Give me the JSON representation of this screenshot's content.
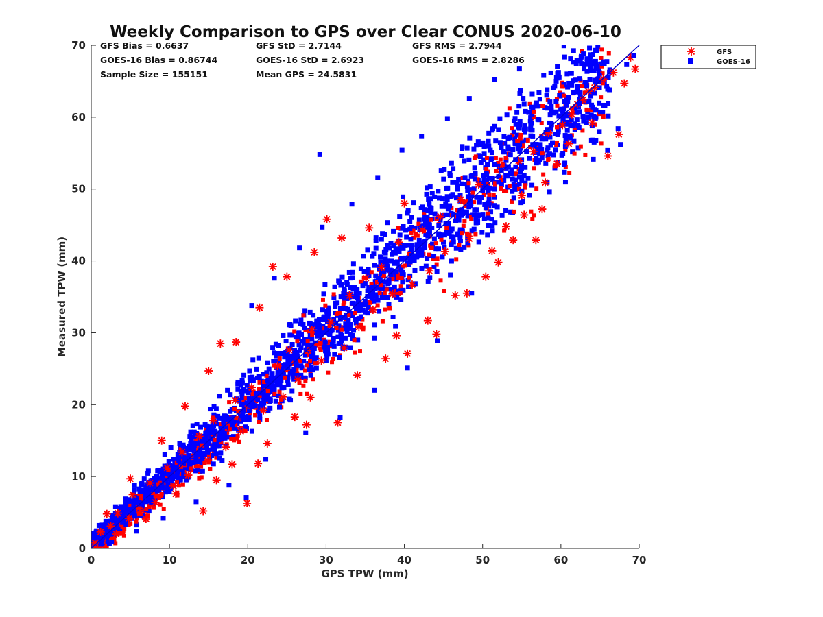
{
  "chart_data": {
    "type": "scatter",
    "title": "Weekly Comparison to GPS over Clear CONUS 2020-06-10",
    "xlabel": "GPS TPW (mm)",
    "ylabel": "Measured TPW (mm)",
    "xlim": [
      0,
      70
    ],
    "ylim": [
      0,
      70
    ],
    "xticks": [
      "0",
      "10",
      "20",
      "30",
      "40",
      "50",
      "60",
      "70"
    ],
    "yticks": [
      "0",
      "10",
      "20",
      "30",
      "40",
      "50",
      "60",
      "70"
    ],
    "grid": false,
    "legend_placement": "outside-top-right",
    "reference_line": [
      [
        0,
        0
      ],
      [
        70,
        70
      ]
    ],
    "stats": {
      "gfs_bias": "GFS Bias = 0.6637",
      "gfs_std": "GFS StD = 2.7144",
      "gfs_rms": "GFS RMS = 2.7944",
      "goes_bias": "GOES-16 Bias = 0.86744",
      "goes_std": "GOES-16 StD = 2.6923",
      "goes_rms": "GOES-16 RMS = 2.8286",
      "sample_size": "Sample Size = 155151",
      "mean_gps": "Mean GPS = 24.5831"
    },
    "series": [
      {
        "name": "GFS",
        "marker": "asterisk",
        "color": "#ff0000",
        "points": [
          [
            0.5,
            0.8
          ],
          [
            1.2,
            2.3
          ],
          [
            2.5,
            3.1
          ],
          [
            3.4,
            4.9
          ],
          [
            4.8,
            4.2
          ],
          [
            5.3,
            7.5
          ],
          [
            6.1,
            5.6
          ],
          [
            7.5,
            9.1
          ],
          [
            8.2,
            6.4
          ],
          [
            9.7,
            11.2
          ],
          [
            10.5,
            8.7
          ],
          [
            11.6,
            13.4
          ],
          [
            12.4,
            10.2
          ],
          [
            13.8,
            15.6
          ],
          [
            14.3,
            5.2
          ],
          [
            14.9,
            12.3
          ],
          [
            15.6,
            17.8
          ],
          [
            16.5,
            28.5
          ],
          [
            17.2,
            14.1
          ],
          [
            18.4,
            20.6
          ],
          [
            19.1,
            16.3
          ],
          [
            19.9,
            6.3
          ],
          [
            20.5,
            22.4
          ],
          [
            21.3,
            11.8
          ],
          [
            22.0,
            19.2
          ],
          [
            23.2,
            39.2
          ],
          [
            23.8,
            25.4
          ],
          [
            24.5,
            21.1
          ],
          [
            25.3,
            27.6
          ],
          [
            26.4,
            23.5
          ],
          [
            27.5,
            17.2
          ],
          [
            28.2,
            30.4
          ],
          [
            29.4,
            26.1
          ],
          [
            30.1,
            45.8
          ],
          [
            30.6,
            31.5
          ],
          [
            31.5,
            17.5
          ],
          [
            32.3,
            27.9
          ],
          [
            33.0,
            35.2
          ],
          [
            34.2,
            30.8
          ],
          [
            35.1,
            37.6
          ],
          [
            36.0,
            33.2
          ],
          [
            37.1,
            39.1
          ],
          [
            37.6,
            26.4
          ],
          [
            38.5,
            35.4
          ],
          [
            39.3,
            42.6
          ],
          [
            40.4,
            27.1
          ],
          [
            41.0,
            36.7
          ],
          [
            42.3,
            44.3
          ],
          [
            43.2,
            38.6
          ],
          [
            44.1,
            29.8
          ],
          [
            44.6,
            46.2
          ],
          [
            45.2,
            41.3
          ],
          [
            46.5,
            35.2
          ],
          [
            47.2,
            48.5
          ],
          [
            48.3,
            43.1
          ],
          [
            49.5,
            50.6
          ],
          [
            50.4,
            37.8
          ],
          [
            51.2,
            41.4
          ],
          [
            52.3,
            52.7
          ],
          [
            53.0,
            44.8
          ],
          [
            53.9,
            42.9
          ],
          [
            54.6,
            53.9
          ],
          [
            55.3,
            46.4
          ],
          [
            56.5,
            55.2
          ],
          [
            56.8,
            42.9
          ],
          [
            57.6,
            47.2
          ],
          [
            58.4,
            57.8
          ],
          [
            59.5,
            53.5
          ],
          [
            60.2,
            58.9
          ],
          [
            61.4,
            60.4
          ],
          [
            62.1,
            61.8
          ],
          [
            62.8,
            62.4
          ],
          [
            63.5,
            63.6
          ],
          [
            64.3,
            64.1
          ],
          [
            65.4,
            65.3
          ],
          [
            66.0,
            54.6
          ],
          [
            66.7,
            66.2
          ],
          [
            67.4,
            57.6
          ],
          [
            68.1,
            64.7
          ],
          [
            68.9,
            68.3
          ],
          [
            69.5,
            66.7
          ],
          [
            3.2,
            2.0
          ],
          [
            7.0,
            4.1
          ],
          [
            10.8,
            7.6
          ],
          [
            16.0,
            9.5
          ],
          [
            18.0,
            11.7
          ],
          [
            22.5,
            14.6
          ],
          [
            26.0,
            18.3
          ],
          [
            28.0,
            21.0
          ],
          [
            34.0,
            24.1
          ],
          [
            39.0,
            29.6
          ],
          [
            43.0,
            31.7
          ],
          [
            48.0,
            35.5
          ],
          [
            52.0,
            39.8
          ],
          [
            55.0,
            49.1
          ],
          [
            58.0,
            50.9
          ],
          [
            61.0,
            56.3
          ],
          [
            64.0,
            59.2
          ],
          [
            2.0,
            4.8
          ],
          [
            5.0,
            9.7
          ],
          [
            9.0,
            15.0
          ],
          [
            12.0,
            19.8
          ],
          [
            15.0,
            24.7
          ],
          [
            18.5,
            28.7
          ],
          [
            21.5,
            33.5
          ],
          [
            25.0,
            37.8
          ],
          [
            28.5,
            41.2
          ],
          [
            32.0,
            43.2
          ],
          [
            35.5,
            44.6
          ],
          [
            40.0,
            48.0
          ]
        ]
      },
      {
        "name": "GOES-16",
        "marker": "square",
        "color": "#0000ff",
        "points": [
          [
            0.3,
            1.5
          ],
          [
            1.0,
            3.2
          ],
          [
            2.2,
            1.9
          ],
          [
            3.1,
            5.8
          ],
          [
            4.0,
            3.6
          ],
          [
            5.5,
            8.1
          ],
          [
            6.4,
            6.2
          ],
          [
            7.3,
            10.8
          ],
          [
            8.6,
            8.3
          ],
          [
            9.4,
            13.1
          ],
          [
            10.2,
            9.4
          ],
          [
            11.3,
            14.6
          ],
          [
            12.6,
            11.9
          ],
          [
            13.5,
            17.3
          ],
          [
            14.1,
            13.0
          ],
          [
            15.2,
            19.4
          ],
          [
            16.3,
            15.1
          ],
          [
            17.4,
            22.0
          ],
          [
            18.2,
            17.6
          ],
          [
            19.5,
            24.1
          ],
          [
            19.8,
            7.1
          ],
          [
            20.6,
            19.9
          ],
          [
            21.4,
            26.5
          ],
          [
            22.5,
            21.3
          ],
          [
            23.6,
            28.4
          ],
          [
            24.2,
            23.9
          ],
          [
            25.4,
            31.2
          ],
          [
            26.2,
            25.6
          ],
          [
            27.3,
            33.1
          ],
          [
            28.5,
            27.8
          ],
          [
            29.2,
            54.8
          ],
          [
            29.7,
            35.4
          ],
          [
            30.4,
            29.9
          ],
          [
            31.6,
            37.2
          ],
          [
            32.4,
            32.1
          ],
          [
            33.5,
            39.6
          ],
          [
            34.1,
            34.2
          ],
          [
            35.3,
            41.5
          ],
          [
            36.4,
            36.3
          ],
          [
            37.2,
            43.8
          ],
          [
            38.3,
            38.1
          ],
          [
            39.4,
            46.2
          ],
          [
            40.1,
            40.4
          ],
          [
            40.4,
            25.1
          ],
          [
            41.2,
            48.1
          ],
          [
            42.5,
            42.6
          ],
          [
            43.3,
            50.3
          ],
          [
            44.4,
            44.9
          ],
          [
            45.1,
            52.7
          ],
          [
            46.2,
            46.5
          ],
          [
            47.3,
            54.6
          ],
          [
            48.4,
            48.3
          ],
          [
            48.6,
            35.5
          ],
          [
            49.2,
            56.1
          ],
          [
            50.5,
            50.2
          ],
          [
            51.3,
            58.4
          ],
          [
            52.4,
            52.6
          ],
          [
            53.1,
            60.3
          ],
          [
            54.2,
            54.1
          ],
          [
            54.9,
            48.1
          ],
          [
            55.3,
            61.8
          ],
          [
            56.4,
            56.2
          ],
          [
            57.2,
            63.4
          ],
          [
            58.3,
            58.3
          ],
          [
            59.4,
            65.0
          ],
          [
            60.3,
            60.1
          ],
          [
            61.2,
            66.1
          ],
          [
            62.4,
            61.9
          ],
          [
            63.3,
            64.3
          ],
          [
            64.6,
            69.2
          ],
          [
            65.4,
            67.7
          ],
          [
            66.2,
            63.8
          ],
          [
            67.3,
            58.4
          ],
          [
            67.6,
            56.2
          ],
          [
            68.4,
            67.3
          ],
          [
            69.3,
            68.6
          ],
          [
            20.5,
            33.8
          ],
          [
            23.4,
            37.6
          ],
          [
            26.6,
            41.8
          ],
          [
            29.5,
            44.7
          ],
          [
            33.3,
            47.9
          ],
          [
            36.6,
            51.6
          ],
          [
            39.7,
            55.4
          ],
          [
            42.2,
            57.3
          ],
          [
            45.5,
            59.8
          ],
          [
            48.3,
            62.6
          ],
          [
            51.5,
            65.2
          ],
          [
            54.7,
            66.7
          ],
          [
            57.8,
            65.8
          ],
          [
            44.2,
            28.9
          ],
          [
            36.2,
            22.0
          ],
          [
            31.8,
            18.2
          ],
          [
            27.4,
            16.1
          ],
          [
            22.3,
            12.4
          ],
          [
            17.6,
            8.8
          ],
          [
            13.4,
            6.5
          ],
          [
            9.2,
            4.2
          ],
          [
            5.8,
            2.4
          ],
          [
            2.6,
            0.9
          ],
          [
            60.5,
            53.6
          ]
        ]
      }
    ]
  }
}
